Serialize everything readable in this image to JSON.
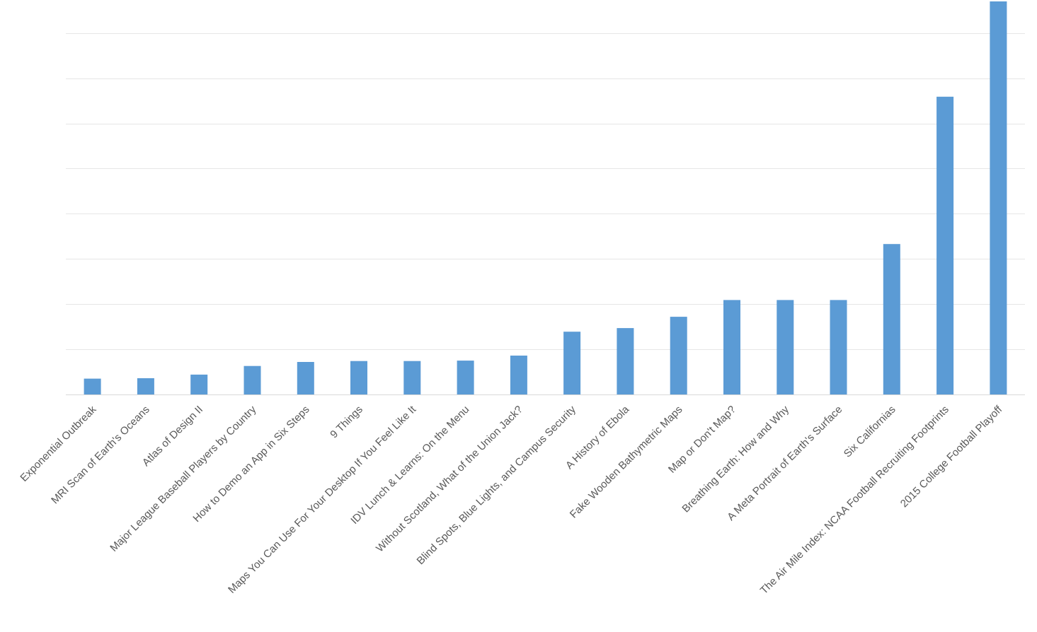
{
  "chart_data": {
    "type": "bar",
    "title": "",
    "xlabel": "",
    "ylabel": "",
    "grid": true,
    "legend": "none",
    "bar_color": "#5b9bd5",
    "ylim": [
      0,
      87
    ],
    "y_gridlines": [
      0,
      10,
      20,
      30,
      40,
      50,
      60,
      70,
      80
    ],
    "categories": [
      "Exponential Outbreak",
      "MRI Scan of Earth's Oceans",
      "Atlas of Design II",
      "Major League Baseball Players by Country",
      "How to Demo an App in Six Steps",
      "9 Things",
      "Maps You Can Use For Your Desktop If You Feel Like It",
      "IDV Lunch & Learns: On the Menu",
      "Without Scotland, What of the Union Jack?",
      "Blind Spots, Blue Lights, and Campus Security",
      "A History of Ebola",
      "Fake Wooden Bathymetric Maps",
      "Map or Don't Map?",
      "Breathing Earth: How and Why",
      "A Meta Portrait of Earth's Surface",
      "Six Californias",
      "The Air Mile Index: NCAA Football Recruiting Footprints",
      "2015 College Football Playoff"
    ],
    "values": [
      3.5,
      3.6,
      4.4,
      6.3,
      7.2,
      7.4,
      7.4,
      7.5,
      8.6,
      13.9,
      14.7,
      17.2,
      20.9,
      20.9,
      20.9,
      33.3,
      65.9,
      87.0
    ]
  }
}
